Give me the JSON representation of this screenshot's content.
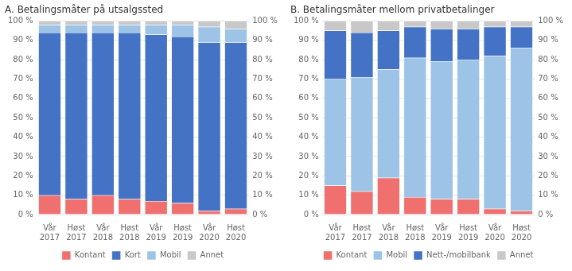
{
  "chart_data": [
    {
      "type": "bar",
      "stacked": true,
      "grid": true,
      "legend": "bottom",
      "title": "A. Betalingsmåter på utsalgssted",
      "categories": [
        "Vår\n2017",
        "Høst\n2017",
        "Vår\n2018",
        "Høst\n2018",
        "Vår\n2019",
        "Høst\n2019",
        "Vår\n2020",
        "Høst\n2020"
      ],
      "series": [
        {
          "name": "Kontant",
          "color": "#f07070",
          "values": [
            10,
            8,
            10,
            8,
            7,
            6,
            2,
            3
          ]
        },
        {
          "name": "Kort",
          "color": "#4472c4",
          "values": [
            84,
            86,
            84,
            86,
            86,
            86,
            87,
            86
          ]
        },
        {
          "name": "Mobil",
          "color": "#9dc3e6",
          "values": [
            4,
            4,
            4,
            4,
            5,
            6,
            8,
            7
          ]
        },
        {
          "name": "Annet",
          "color": "#c8c8c8",
          "values": [
            2,
            2,
            2,
            2,
            2,
            2,
            3,
            4
          ]
        }
      ],
      "ylim": [
        0,
        100
      ],
      "yticks": [
        {
          "value": 0,
          "label": "0 %"
        },
        {
          "value": 10,
          "label": "10 %"
        },
        {
          "value": 20,
          "label": "20 %"
        },
        {
          "value": 30,
          "label": "30 %"
        },
        {
          "value": 40,
          "label": "40 %"
        },
        {
          "value": 50,
          "label": "50 %"
        },
        {
          "value": 60,
          "label": "60 %"
        },
        {
          "value": 70,
          "label": "70 %"
        },
        {
          "value": 80,
          "label": "80 %"
        },
        {
          "value": 90,
          "label": "90 %"
        },
        {
          "value": 100,
          "label": "100 %"
        }
      ],
      "y2lim": [
        0,
        100
      ],
      "y2ticks": [
        {
          "value": 0,
          "label": "0 %"
        },
        {
          "value": 10,
          "label": "10 %"
        },
        {
          "value": 20,
          "label": "20 %"
        },
        {
          "value": 30,
          "label": "30 %"
        },
        {
          "value": 40,
          "label": "40 %"
        },
        {
          "value": 50,
          "label": "50 %"
        },
        {
          "value": 60,
          "label": "60 %"
        },
        {
          "value": 70,
          "label": "70 %"
        },
        {
          "value": 80,
          "label": "80 %"
        },
        {
          "value": 90,
          "label": "90 %"
        },
        {
          "value": 100,
          "label": "100 %"
        }
      ]
    },
    {
      "type": "bar",
      "stacked": true,
      "grid": true,
      "legend": "bottom",
      "title": "B. Betalingsmåter mellom privatbetalinger",
      "categories": [
        "Vår\n2017",
        "Høst\n2017",
        "Vår\n2018",
        "Høst\n2018",
        "Vår\n2019",
        "Høst\n2019",
        "Vår\n2020",
        "Høst\n2020"
      ],
      "series": [
        {
          "name": "Kontant",
          "color": "#f07070",
          "values": [
            15,
            12,
            19,
            9,
            8,
            8,
            3,
            2
          ]
        },
        {
          "name": "Mobil",
          "color": "#9dc3e6",
          "values": [
            55,
            59,
            56,
            72,
            71,
            72,
            79,
            84
          ]
        },
        {
          "name": "Nett-/mobilbank",
          "color": "#4472c4",
          "values": [
            25,
            23,
            20,
            16,
            17,
            16,
            15,
            11
          ]
        },
        {
          "name": "Annet",
          "color": "#c8c8c8",
          "values": [
            5,
            6,
            5,
            3,
            4,
            4,
            3,
            3
          ]
        }
      ],
      "ylim": [
        0,
        100
      ],
      "yticks": [
        {
          "value": 0,
          "label": "0 %"
        },
        {
          "value": 10,
          "label": "10 %"
        },
        {
          "value": 20,
          "label": "20 %"
        },
        {
          "value": 30,
          "label": "30 %"
        },
        {
          "value": 40,
          "label": "40 %"
        },
        {
          "value": 50,
          "label": "50 %"
        },
        {
          "value": 60,
          "label": "60 %"
        },
        {
          "value": 70,
          "label": "70 %"
        },
        {
          "value": 80,
          "label": "80 %"
        },
        {
          "value": 90,
          "label": "90 %"
        },
        {
          "value": 100,
          "label": "100 %"
        }
      ],
      "y2lim": [
        0,
        100
      ],
      "y2ticks": [
        {
          "value": 0,
          "label": "0 %"
        },
        {
          "value": 10,
          "label": "10 %"
        },
        {
          "value": 20,
          "label": "20 %"
        },
        {
          "value": 30,
          "label": "30 %"
        },
        {
          "value": 40,
          "label": "40 %"
        },
        {
          "value": 50,
          "label": "50 %"
        },
        {
          "value": 60,
          "label": "60 %"
        },
        {
          "value": 70,
          "label": "70 %"
        },
        {
          "value": 80,
          "label": "80 %"
        },
        {
          "value": 90,
          "label": "90 %"
        },
        {
          "value": 100,
          "label": "100 %"
        }
      ]
    }
  ]
}
